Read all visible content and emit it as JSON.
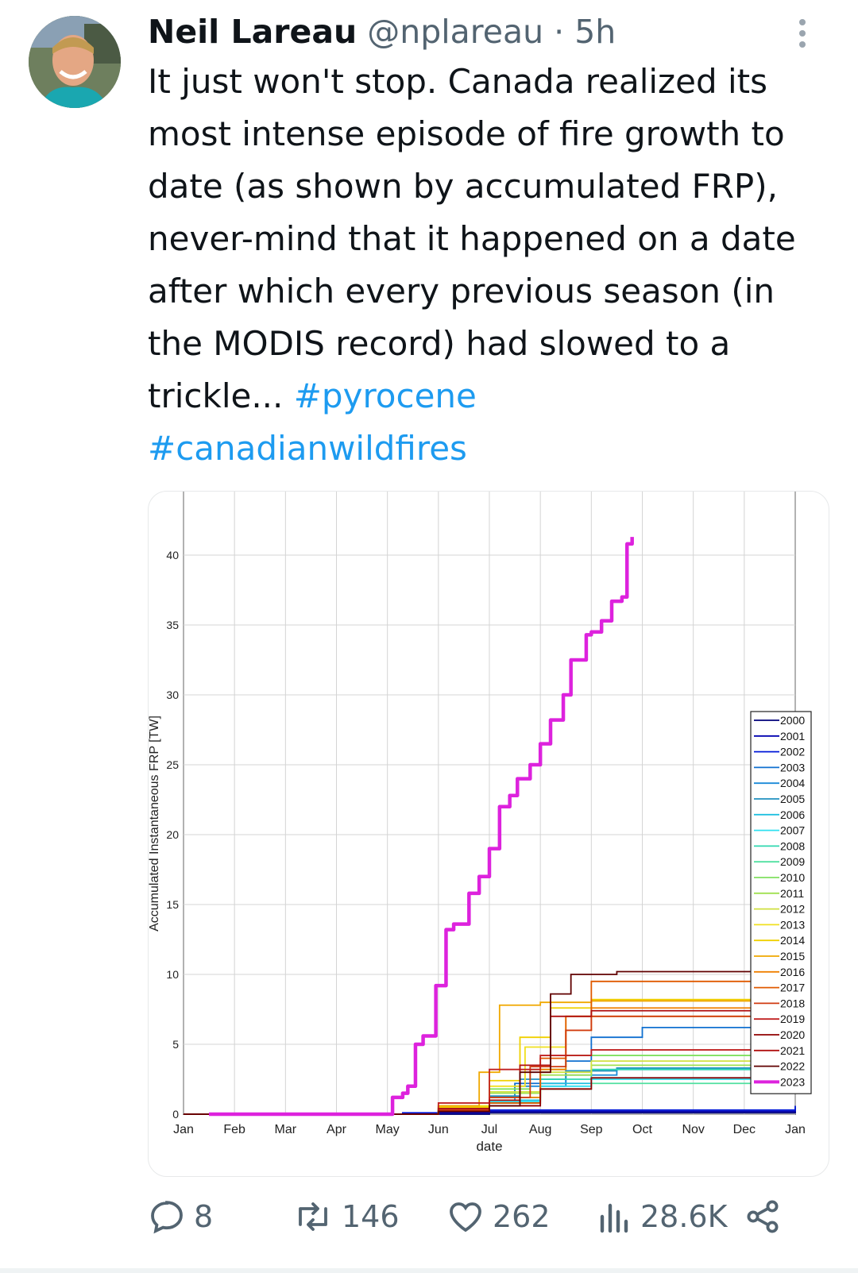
{
  "tweet": {
    "author_name": "Neil Lareau",
    "handle": "@nplareau",
    "separator": "·",
    "time": "5h",
    "text_main": "It just won't stop. Canada realized its most intense episode of fire growth to date (as shown by accumulated FRP), never-mind that it happened on a date after which every previous season (in the MODIS record) had slowed to a trickle... ",
    "hashtag1": "#pyrocene",
    "hashtag2": "#canadianwildfires"
  },
  "actions": {
    "replies": "8",
    "reposts": "146",
    "likes": "262",
    "views": "28.6K"
  },
  "colors": {
    "text": "#0f1419",
    "secondary": "#536471",
    "link": "#1d9bf0",
    "highlight_series": "#dd22dd"
  },
  "icons": [
    "more-icon",
    "reply-icon",
    "repost-icon",
    "like-icon",
    "views-icon",
    "share-icon"
  ],
  "chart_data": {
    "type": "line",
    "xlabel": "date",
    "ylabel": "Accumulated Instantaneous FRP [TW]",
    "ylim": [
      0,
      45
    ],
    "yticks": [
      0,
      5,
      10,
      15,
      20,
      25,
      30,
      35,
      40,
      45
    ],
    "x_months": [
      "Jan",
      "Feb",
      "Mar",
      "Apr",
      "May",
      "Jun",
      "Jul",
      "Aug",
      "Sep",
      "Oct",
      "Nov",
      "Dec",
      "Jan"
    ],
    "xlim": [
      0,
      12
    ],
    "grid": true,
    "legend_position": "right",
    "series": [
      {
        "name": "2000",
        "color": "#00007a",
        "x": [
          0,
          4,
          6,
          12
        ],
        "y": [
          0,
          0,
          0.1,
          0.2
        ]
      },
      {
        "name": "2001",
        "color": "#0000b0",
        "x": [
          0,
          4,
          5,
          6,
          12
        ],
        "y": [
          0,
          0,
          0.1,
          0.2,
          0.4
        ]
      },
      {
        "name": "2002",
        "color": "#0018d8",
        "x": [
          0,
          4,
          4.3,
          5,
          6,
          12
        ],
        "y": [
          0,
          0,
          0.1,
          0.2,
          0.3,
          0.6
        ]
      },
      {
        "name": "2003",
        "color": "#1070d0",
        "x": [
          0,
          4,
          5,
          6,
          6.5,
          7.5,
          8,
          9,
          12
        ],
        "y": [
          0,
          0,
          0.3,
          1.2,
          2.2,
          3.8,
          5.5,
          6.2,
          6.8
        ]
      },
      {
        "name": "2004",
        "color": "#1a8ad8",
        "x": [
          0,
          4,
          5,
          6,
          6.5,
          7.5,
          8.5,
          12
        ],
        "y": [
          0,
          0,
          0.4,
          0.8,
          2.0,
          2.8,
          3.2,
          3.6
        ]
      },
      {
        "name": "2005",
        "color": "#2090c0",
        "x": [
          0,
          4,
          5,
          6,
          6.6,
          7.5,
          8.5,
          12
        ],
        "y": [
          0,
          0,
          0.5,
          1.3,
          2.5,
          3.1,
          3.3,
          3.7
        ]
      },
      {
        "name": "2006",
        "color": "#20c0e0",
        "x": [
          0,
          4,
          5,
          6,
          7,
          8,
          12
        ],
        "y": [
          0,
          0,
          0.4,
          1.0,
          2.2,
          2.6,
          3.0
        ]
      },
      {
        "name": "2007",
        "color": "#30e0f0",
        "x": [
          0,
          4,
          5,
          6,
          7,
          8,
          12
        ],
        "y": [
          0,
          0,
          0.3,
          0.9,
          2.0,
          2.5,
          2.8
        ]
      },
      {
        "name": "2008",
        "color": "#30d8b0",
        "x": [
          0,
          4,
          5,
          6,
          7,
          8,
          12
        ],
        "y": [
          0,
          0,
          0.3,
          1.2,
          2.5,
          3.2,
          3.5
        ]
      },
      {
        "name": "2009",
        "color": "#50e0a0",
        "x": [
          0,
          4,
          5,
          6,
          7,
          8,
          12
        ],
        "y": [
          0,
          0,
          0.2,
          0.8,
          1.8,
          2.2,
          2.6
        ]
      },
      {
        "name": "2010",
        "color": "#80e060",
        "x": [
          0,
          4,
          5,
          6,
          6.8,
          7.5,
          12
        ],
        "y": [
          0,
          0,
          0.6,
          1.8,
          3.2,
          4.2,
          5.6
        ]
      },
      {
        "name": "2011",
        "color": "#a0e050",
        "x": [
          0,
          4,
          5,
          6,
          7,
          8,
          12
        ],
        "y": [
          0,
          0,
          0.5,
          1.5,
          2.8,
          3.5,
          4.0
        ]
      },
      {
        "name": "2012",
        "color": "#d0e040",
        "x": [
          0,
          4,
          5,
          6,
          7,
          8,
          12
        ],
        "y": [
          0,
          0,
          0.6,
          1.6,
          3.0,
          3.8,
          4.4
        ]
      },
      {
        "name": "2013",
        "color": "#f0e020",
        "x": [
          0,
          4,
          5,
          6,
          6.7,
          7.5,
          12
        ],
        "y": [
          0,
          0,
          0.6,
          2.0,
          4.8,
          7.0,
          7.6
        ]
      },
      {
        "name": "2014",
        "color": "#f0d000",
        "x": [
          0,
          4,
          5,
          6,
          6.6,
          7.2,
          8,
          12
        ],
        "y": [
          0,
          0,
          0.5,
          2.4,
          5.5,
          7.6,
          8.2,
          8.8
        ]
      },
      {
        "name": "2015",
        "color": "#f0a800",
        "x": [
          0,
          4,
          5,
          5.8,
          6.2,
          7,
          8,
          12
        ],
        "y": [
          0,
          0,
          0.6,
          3.0,
          7.8,
          8.0,
          8.1,
          8.6
        ]
      },
      {
        "name": "2016",
        "color": "#f08000",
        "x": [
          0,
          4,
          5,
          6,
          7,
          7.5,
          8,
          12
        ],
        "y": [
          0,
          0,
          0.3,
          1.2,
          3.2,
          6.0,
          7.6,
          8.3
        ]
      },
      {
        "name": "2017",
        "color": "#e05a00",
        "x": [
          0,
          4,
          5,
          6,
          7,
          7.5,
          8,
          12
        ],
        "y": [
          0,
          0,
          0.2,
          0.8,
          4.0,
          7.0,
          9.5,
          9.9
        ]
      },
      {
        "name": "2018",
        "color": "#d03a10",
        "x": [
          0,
          4,
          5,
          6,
          6.8,
          7.5,
          8,
          12
        ],
        "y": [
          0,
          0,
          0.3,
          1.2,
          3.4,
          6.0,
          7.0,
          7.6
        ]
      },
      {
        "name": "2019",
        "color": "#c02020",
        "x": [
          0,
          4,
          5,
          6,
          7,
          8,
          12
        ],
        "y": [
          0,
          0,
          0.8,
          3.2,
          4.2,
          4.6,
          5.0
        ]
      },
      {
        "name": "2020",
        "color": "#900000",
        "x": [
          0,
          4,
          5,
          6,
          7,
          8,
          12
        ],
        "y": [
          0,
          0,
          0.2,
          0.6,
          1.8,
          2.6,
          3.8
        ]
      },
      {
        "name": "2021",
        "color": "#b01010",
        "x": [
          0,
          4,
          5,
          6,
          6.6,
          7.2,
          8,
          12
        ],
        "y": [
          0,
          0,
          0.4,
          1.0,
          3.5,
          7.0,
          7.4,
          7.8
        ]
      },
      {
        "name": "2022",
        "color": "#600000",
        "x": [
          0,
          4,
          5,
          6,
          6.6,
          7.2,
          7.6,
          8.5,
          12
        ],
        "y": [
          0,
          0,
          0.2,
          0.6,
          3.0,
          8.6,
          10.0,
          10.2,
          10.6
        ]
      },
      {
        "name": "2023",
        "color": "#dd22dd",
        "highlight": true,
        "x": [
          0.5,
          4,
          4.1,
          4.3,
          4.4,
          4.55,
          4.7,
          4.95,
          5.15,
          5.3,
          5.6,
          5.8,
          6.0,
          6.2,
          6.4,
          6.55,
          6.8,
          7.0,
          7.2,
          7.45,
          7.6,
          7.9,
          8.0,
          8.2,
          8.4,
          8.6,
          8.7,
          8.8
        ],
        "y": [
          0,
          0,
          1.2,
          1.5,
          2.0,
          5.0,
          5.6,
          9.2,
          13.2,
          13.6,
          15.8,
          17.0,
          19.0,
          22.0,
          22.8,
          24.0,
          25.0,
          26.5,
          28.2,
          30.0,
          32.5,
          34.3,
          34.5,
          35.3,
          36.7,
          37.0,
          40.8,
          41.3
        ]
      }
    ]
  }
}
